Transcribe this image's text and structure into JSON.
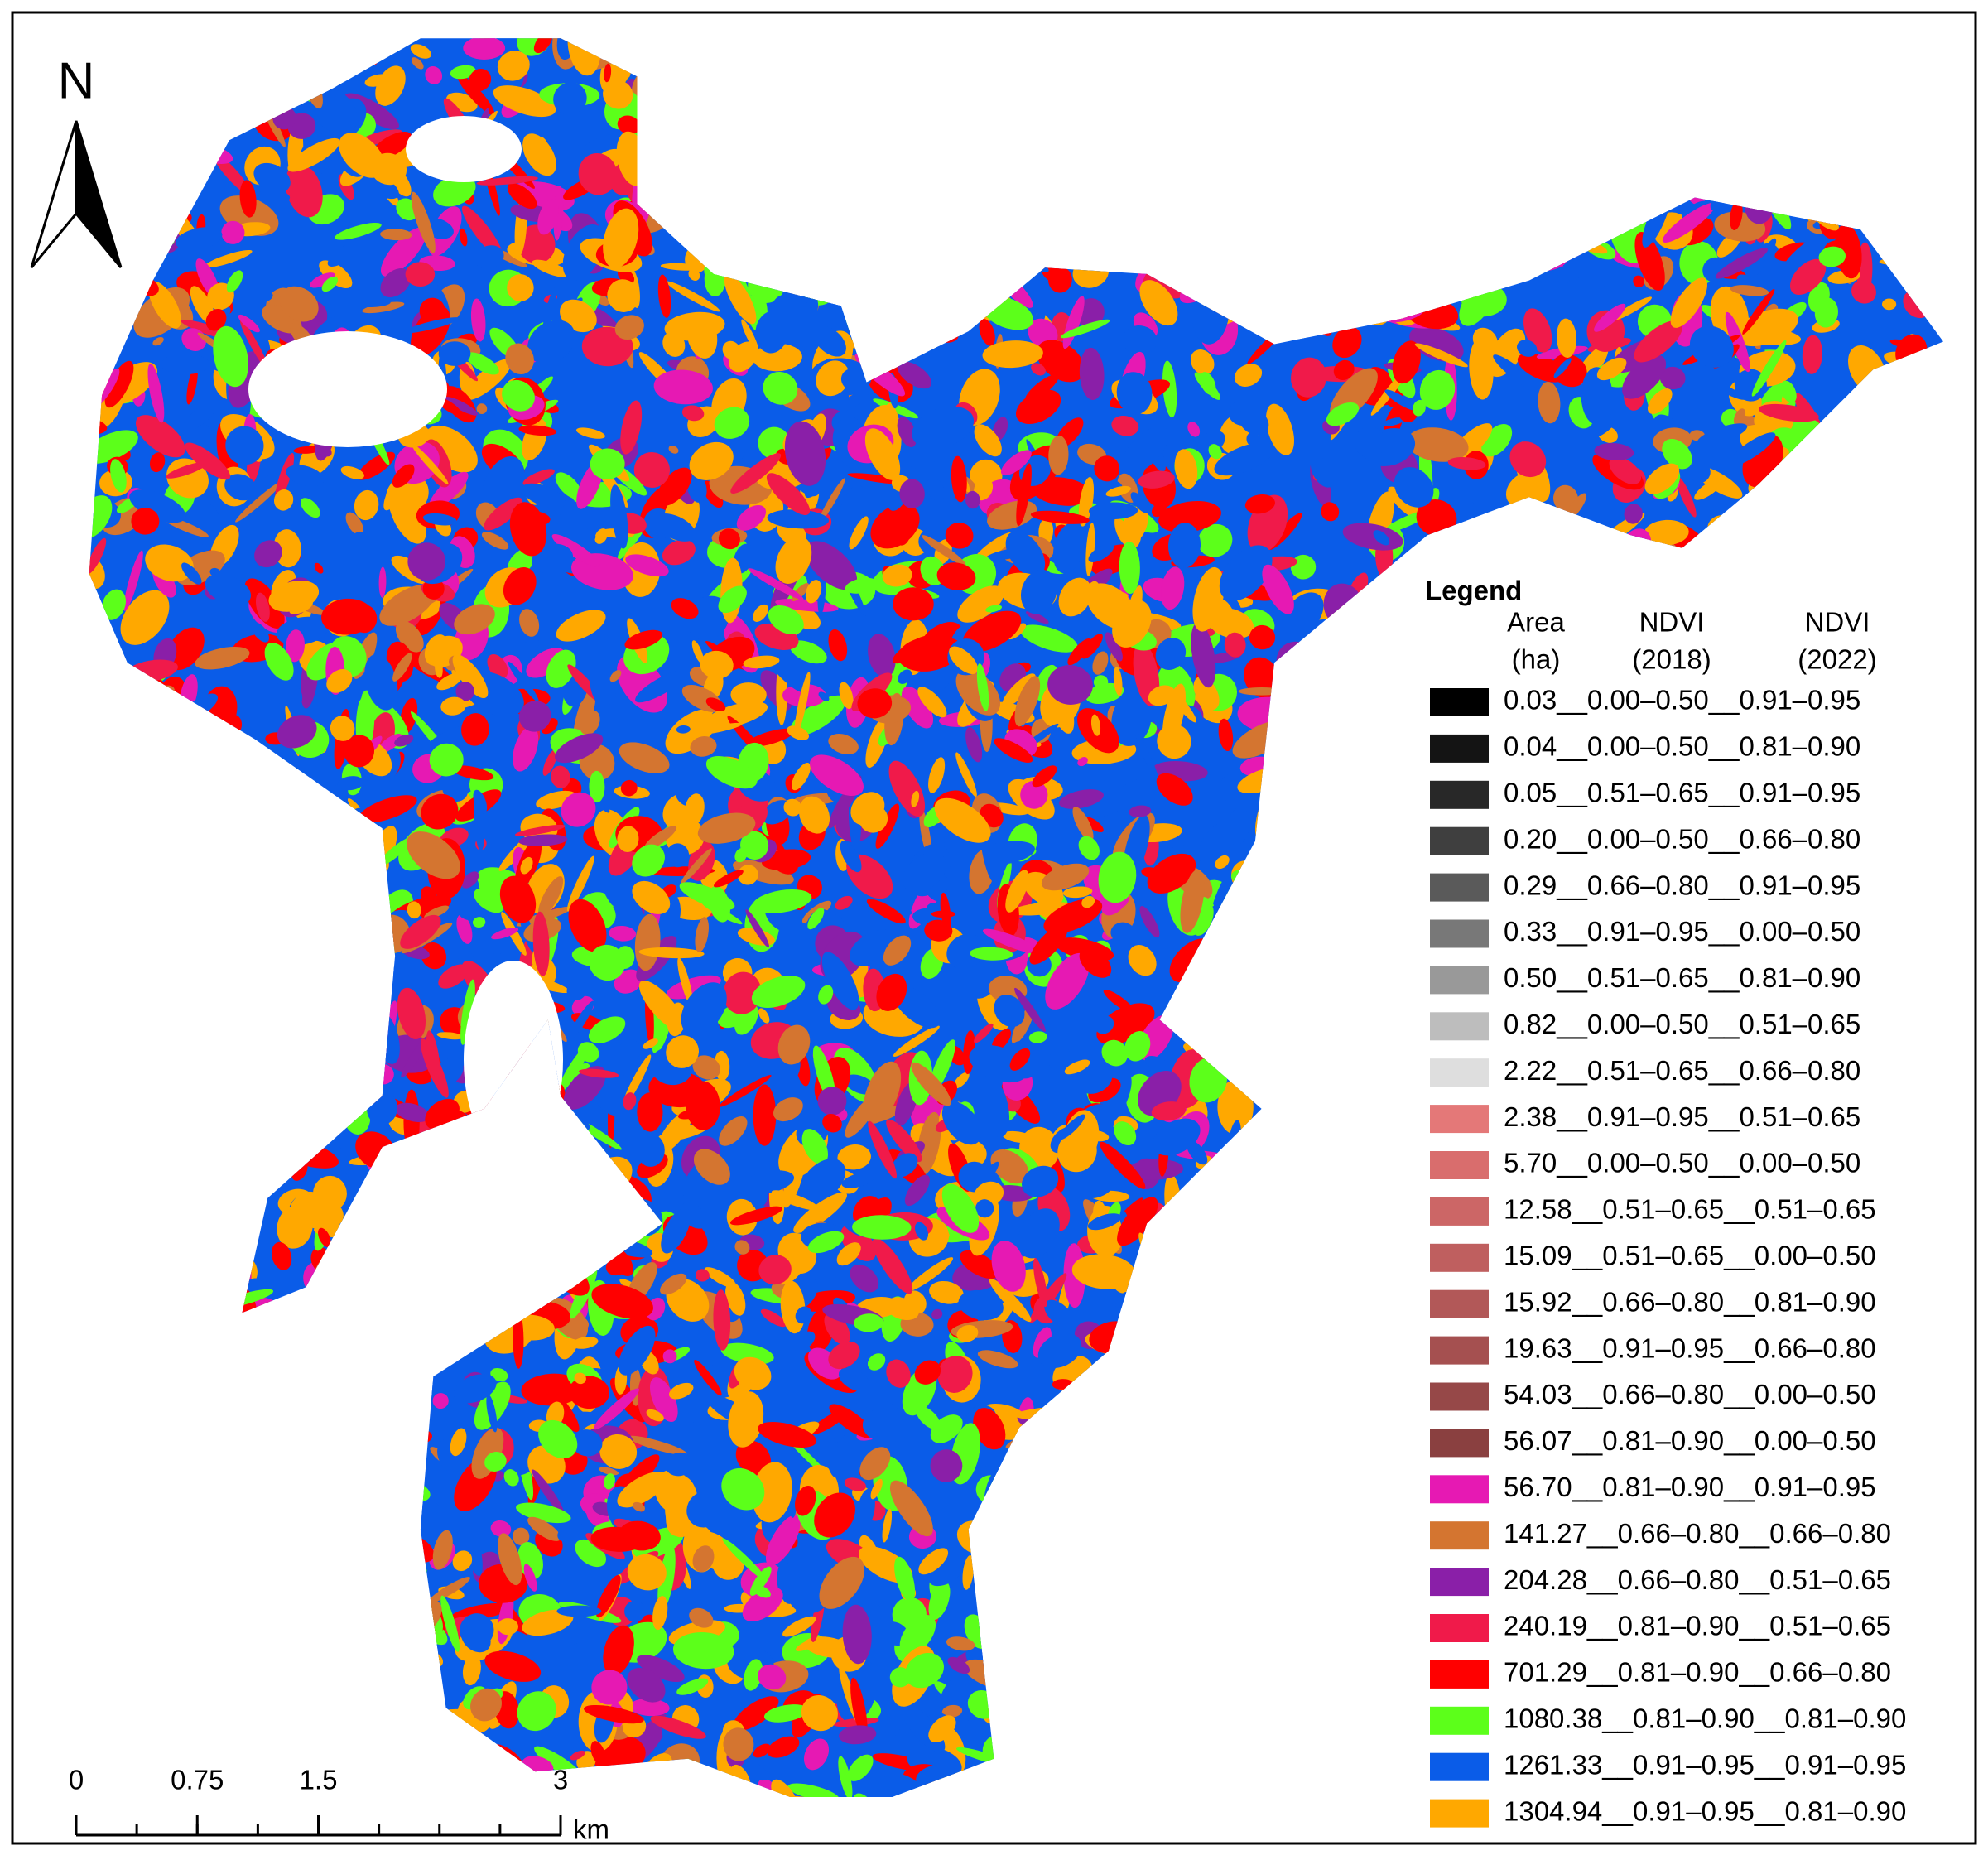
{
  "north_label": "N",
  "legend": {
    "title": "Legend",
    "headers": [
      [
        "Area",
        "(ha)"
      ],
      [
        "NDVI",
        "(2018)"
      ],
      [
        "NDVI",
        "(2022)"
      ]
    ],
    "rows": [
      {
        "label": "0.03__0.00–0.50__0.91–0.95",
        "color": "#000000"
      },
      {
        "label": "0.04__0.00–0.50__0.81–0.90",
        "color": "#141414"
      },
      {
        "label": "0.05__0.51–0.65__0.91–0.95",
        "color": "#282828"
      },
      {
        "label": "0.20__0.00–0.50__0.66–0.80",
        "color": "#3f3f3f"
      },
      {
        "label": "0.29__0.66–0.80__0.91–0.95",
        "color": "#5a5a5a"
      },
      {
        "label": "0.33__0.91–0.95__0.00–0.50",
        "color": "#787878"
      },
      {
        "label": "0.50__0.51–0.65__0.81–0.90",
        "color": "#999999"
      },
      {
        "label": "0.82__0.00–0.50__0.51–0.65",
        "color": "#bdbdbd"
      },
      {
        "label": "2.22__0.51–0.65__0.66–0.80",
        "color": "#dedede"
      },
      {
        "label": "2.38__0.91–0.95__0.51–0.65",
        "color": "#e47878"
      },
      {
        "label": "5.70__0.00–0.50__0.00–0.50",
        "color": "#d96d6d"
      },
      {
        "label": "12.58__0.51–0.65__0.51–0.65",
        "color": "#cc6666"
      },
      {
        "label": "15.09__0.51–0.65__0.00–0.50",
        "color": "#bf5f5f"
      },
      {
        "label": "15.92__0.66–0.80__0.81–0.90",
        "color": "#b25858"
      },
      {
        "label": "19.63__0.91–0.95__0.66–0.80",
        "color": "#a55050"
      },
      {
        "label": "54.03__0.66–0.80__0.00–0.50",
        "color": "#964848"
      },
      {
        "label": "56.07__0.81–0.90__0.00–0.50",
        "color": "#8a4040"
      },
      {
        "label": "56.70__0.81–0.90__0.91–0.95",
        "color": "#e619b3"
      },
      {
        "label": "141.27__0.66–0.80__0.66–0.80",
        "color": "#d47530"
      },
      {
        "label": "204.28__0.66–0.80__0.51–0.65",
        "color": "#8a1fa8"
      },
      {
        "label": "240.19__0.81–0.90__0.51–0.65",
        "color": "#f01a4a"
      },
      {
        "label": "701.29__0.81–0.90__0.66–0.80",
        "color": "#ff0000"
      },
      {
        "label": "1080.38__0.81–0.90__0.81–0.90",
        "color": "#5cff1a"
      },
      {
        "label": "1261.33__0.91–0.95__0.91–0.95",
        "color": "#0a5ce8"
      },
      {
        "label": "1304.94__0.91–0.95__0.81–0.90",
        "color": "#ffa800"
      }
    ]
  },
  "scale_bar": {
    "ticks": [
      0,
      0.75,
      1.5,
      3
    ],
    "unit": "km"
  }
}
